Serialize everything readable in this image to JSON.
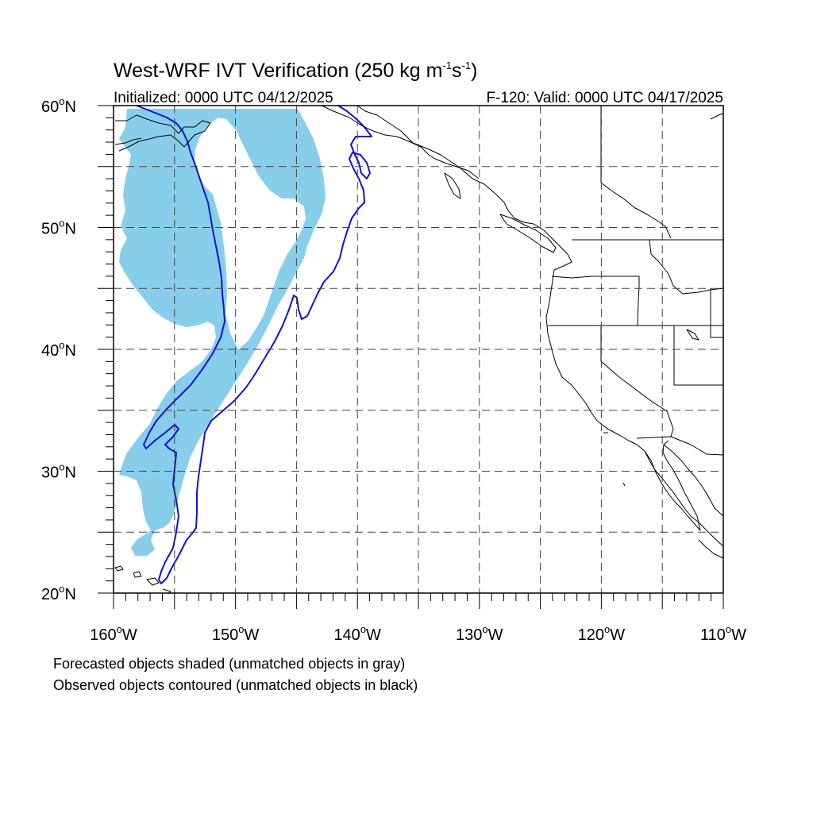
{
  "title": {
    "main": "West-WRF IVT Verification (250 kg m",
    "sup1": "-1",
    "mid": "s",
    "sup2": "-1",
    "end": ")"
  },
  "subtitle_left": "Initialized: 0000 UTC 04/12/2025",
  "subtitle_right": "F-120: Valid: 0000 UTC 04/17/2025",
  "lat_labels": [
    {
      "lat": 60,
      "text": "60"
    },
    {
      "lat": 50,
      "text": "50"
    },
    {
      "lat": 40,
      "text": "40"
    },
    {
      "lat": 30,
      "text": "30"
    },
    {
      "lat": 20,
      "text": "20"
    }
  ],
  "lat_suffix": "N",
  "lon_labels": [
    {
      "lon": -160,
      "text": "160"
    },
    {
      "lon": -150,
      "text": "150"
    },
    {
      "lon": -140,
      "text": "140"
    },
    {
      "lon": -130,
      "text": "130"
    },
    {
      "lon": -120,
      "text": "120"
    },
    {
      "lon": -110,
      "text": "110"
    }
  ],
  "lon_suffix": "W",
  "degree_symbol": "o",
  "notes": [
    "Forecasted objects shaded (unmatched objects in gray)",
    "Observed objects contoured (unmatched objects in black)"
  ],
  "map": {
    "lon_range": [
      -160,
      -110
    ],
    "lat_range": [
      20,
      60
    ],
    "grid_lon_step": 5,
    "grid_lat_step": 5,
    "forecast_fill_color": "#87ceeb",
    "observed_contour_color": "#1010e0",
    "coast_color": "#000000"
  }
}
